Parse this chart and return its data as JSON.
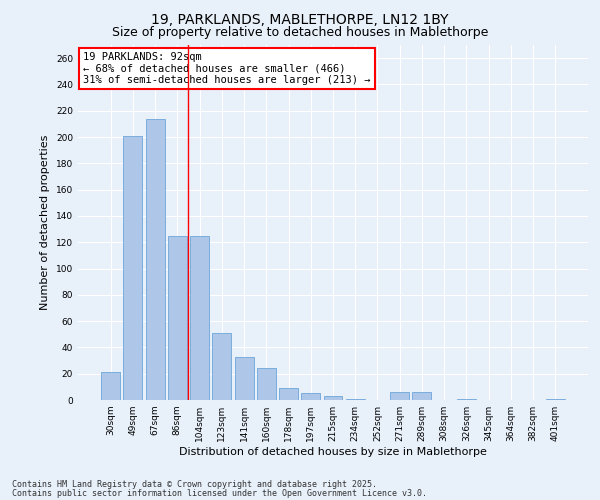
{
  "title_line1": "19, PARKLANDS, MABLETHORPE, LN12 1BY",
  "title_line2": "Size of property relative to detached houses in Mablethorpe",
  "xlabel": "Distribution of detached houses by size in Mablethorpe",
  "ylabel": "Number of detached properties",
  "categories": [
    "30sqm",
    "49sqm",
    "67sqm",
    "86sqm",
    "104sqm",
    "123sqm",
    "141sqm",
    "160sqm",
    "178sqm",
    "197sqm",
    "215sqm",
    "234sqm",
    "252sqm",
    "271sqm",
    "289sqm",
    "308sqm",
    "326sqm",
    "345sqm",
    "364sqm",
    "382sqm",
    "401sqm"
  ],
  "values": [
    21,
    201,
    214,
    125,
    125,
    51,
    33,
    24,
    9,
    5,
    3,
    1,
    0,
    6,
    6,
    0,
    1,
    0,
    0,
    0,
    1
  ],
  "bar_color": "#aec6e8",
  "bar_edge_color": "#5b9bd5",
  "redline_x": 3.5,
  "annotation_text": "19 PARKLANDS: 92sqm\n← 68% of detached houses are smaller (466)\n31% of semi-detached houses are larger (213) →",
  "annotation_box_color": "white",
  "annotation_box_edgecolor": "red",
  "redline_color": "red",
  "ylim": [
    0,
    270
  ],
  "yticks": [
    0,
    20,
    40,
    60,
    80,
    100,
    120,
    140,
    160,
    180,
    200,
    220,
    240,
    260
  ],
  "background_color": "#e8f0fa",
  "plot_background_color": "#e8f0fa",
  "footer_line1": "Contains HM Land Registry data © Crown copyright and database right 2025.",
  "footer_line2": "Contains public sector information licensed under the Open Government Licence v3.0.",
  "title_fontsize": 10,
  "subtitle_fontsize": 9,
  "axis_label_fontsize": 8,
  "tick_fontsize": 6.5,
  "annotation_fontsize": 7.5,
  "footer_fontsize": 6
}
